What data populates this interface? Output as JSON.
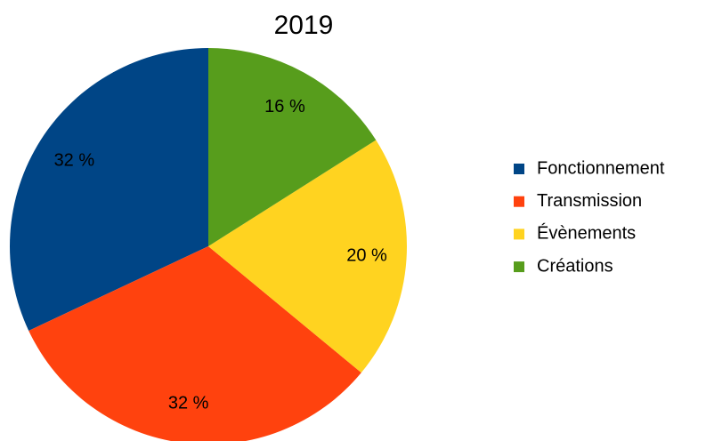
{
  "chart_data": {
    "type": "pie",
    "title": "2019",
    "categories": [
      "Fonctionnement",
      "Transmission",
      "Évènements",
      "Créations"
    ],
    "values": [
      32,
      32,
      20,
      16
    ],
    "value_labels": [
      "32 %",
      "32 %",
      "20 %",
      "16 %"
    ],
    "colors": [
      "#004586",
      "#ff420e",
      "#ffd320",
      "#579d1c"
    ],
    "legend": "right"
  }
}
